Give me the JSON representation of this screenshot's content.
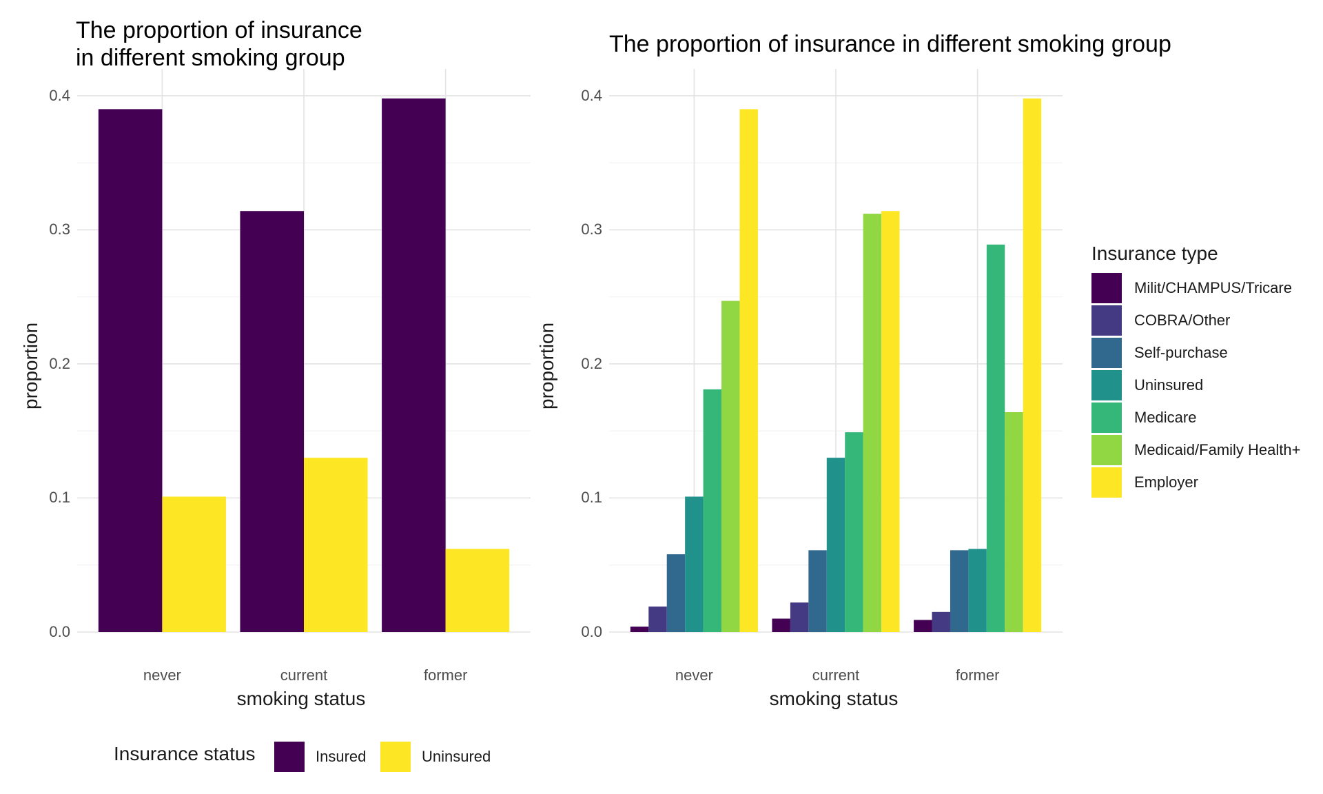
{
  "chart_data": [
    {
      "type": "bar",
      "title": "The proportion of insurance\nin different smoking group",
      "title_lines": [
        "The proportion of insurance",
        "in different smoking group"
      ],
      "xlabel": "smoking status",
      "ylabel": "proportion",
      "categories": [
        "never",
        "current",
        "former"
      ],
      "ylim": [
        0,
        0.42
      ],
      "yticks": [
        "0.0",
        "0.1",
        "0.2",
        "0.3",
        "0.4"
      ],
      "ytick_values": [
        0,
        0.1,
        0.2,
        0.3,
        0.4
      ],
      "grid": true,
      "legend_title": "Insurance status",
      "legend_position": "bottom",
      "series": [
        {
          "name": "Insured",
          "color": "#440154",
          "values": [
            0.39,
            0.314,
            0.398
          ]
        },
        {
          "name": "Uninsured",
          "color": "#fde725",
          "values": [
            0.101,
            0.13,
            0.062
          ]
        }
      ]
    },
    {
      "type": "bar",
      "title": "The proportion of insurance in different smoking group",
      "xlabel": "smoking status",
      "ylabel": "proportion",
      "categories": [
        "never",
        "current",
        "former"
      ],
      "ylim": [
        0,
        0.42
      ],
      "yticks": [
        "0.0",
        "0.1",
        "0.2",
        "0.3",
        "0.4"
      ],
      "ytick_values": [
        0,
        0.1,
        0.2,
        0.3,
        0.4
      ],
      "grid": true,
      "legend_title": "Insurance type",
      "legend_position": "right",
      "series": [
        {
          "name": "Milit/CHAMPUS/Tricare",
          "color": "#440154",
          "values": [
            0.004,
            0.01,
            0.009
          ]
        },
        {
          "name": "COBRA/Other",
          "color": "#443983",
          "values": [
            0.019,
            0.022,
            0.015
          ]
        },
        {
          "name": "Self-purchase",
          "color": "#31688e",
          "values": [
            0.058,
            0.061,
            0.061
          ]
        },
        {
          "name": "Uninsured",
          "color": "#21918c",
          "values": [
            0.101,
            0.13,
            0.062
          ]
        },
        {
          "name": "Medicare",
          "color": "#35b779",
          "values": [
            0.181,
            0.149,
            0.289
          ]
        },
        {
          "name": "Medicaid/Family Health+",
          "color": "#90d743",
          "values": [
            0.247,
            0.312,
            0.164
          ]
        },
        {
          "name": "Employer",
          "color": "#fde725",
          "values": [
            0.39,
            0.314,
            0.398
          ]
        }
      ]
    }
  ]
}
